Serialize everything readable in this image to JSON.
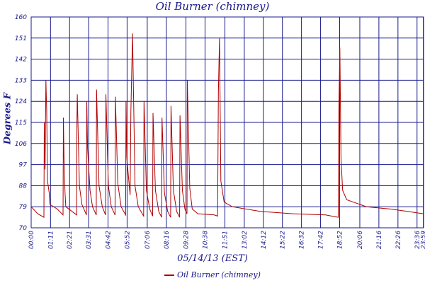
{
  "chart_data": {
    "type": "line",
    "title": "Oil Burner (chimney)",
    "xlabel": "05/14/13 (EST)",
    "ylabel": "Degrees F",
    "ylim": [
      70,
      160
    ],
    "yticks": [
      70,
      79,
      88,
      97,
      106,
      115,
      124,
      133,
      142,
      151,
      160
    ],
    "xrange_hours": [
      0,
      24
    ],
    "xticks": [
      {
        "label": "00:00",
        "h": 0
      },
      {
        "label": "01:11",
        "h": 1.1833
      },
      {
        "label": "02:21",
        "h": 2.35
      },
      {
        "label": "03:31",
        "h": 3.5167
      },
      {
        "label": "04:42",
        "h": 4.7
      },
      {
        "label": "05:52",
        "h": 5.8667
      },
      {
        "label": "07:06",
        "h": 7.1
      },
      {
        "label": "08:16",
        "h": 8.2667
      },
      {
        "label": "09:28",
        "h": 9.4667
      },
      {
        "label": "10:38",
        "h": 10.6333
      },
      {
        "label": "11:51",
        "h": 11.85
      },
      {
        "label": "13:02",
        "h": 13.0333
      },
      {
        "label": "14:12",
        "h": 14.2
      },
      {
        "label": "15:22",
        "h": 15.3667
      },
      {
        "label": "16:32",
        "h": 16.5333
      },
      {
        "label": "17:42",
        "h": 17.7
      },
      {
        "label": "18:52",
        "h": 18.8667
      },
      {
        "label": "20:06",
        "h": 20.1
      },
      {
        "label": "21:16",
        "h": 21.2667
      },
      {
        "label": "22:26",
        "h": 22.4333
      },
      {
        "label": "23:36",
        "h": 23.6
      },
      {
        "label": "23:59",
        "h": 23.9833
      }
    ],
    "grid": true,
    "legend": "bottom-center",
    "series": [
      {
        "name": "Oil Burner (chimney)",
        "color": "#b00000",
        "points": [
          [
            0.0,
            79
          ],
          [
            0.4,
            76
          ],
          [
            0.78,
            74.5
          ],
          [
            0.8,
            115
          ],
          [
            0.85,
            95
          ],
          [
            0.9,
            133
          ],
          [
            0.95,
            120
          ],
          [
            1.0,
            90
          ],
          [
            1.1,
            85
          ],
          [
            1.15,
            80
          ],
          [
            1.6,
            78
          ],
          [
            1.95,
            75.5
          ],
          [
            1.97,
            117
          ],
          [
            2.02,
            95
          ],
          [
            2.07,
            85
          ],
          [
            2.12,
            79
          ],
          [
            2.5,
            77
          ],
          [
            2.78,
            75.5
          ],
          [
            2.8,
            115
          ],
          [
            2.82,
            127
          ],
          [
            2.95,
            88
          ],
          [
            3.1,
            80
          ],
          [
            3.38,
            75.5
          ],
          [
            3.4,
            124
          ],
          [
            3.45,
            104
          ],
          [
            3.6,
            86
          ],
          [
            3.75,
            79
          ],
          [
            3.98,
            75.5
          ],
          [
            4.0,
            129
          ],
          [
            4.15,
            88
          ],
          [
            4.35,
            79
          ],
          [
            4.55,
            75.5
          ],
          [
            4.57,
            127
          ],
          [
            4.72,
            88
          ],
          [
            4.9,
            79
          ],
          [
            5.13,
            75.5
          ],
          [
            5.15,
            126
          ],
          [
            5.3,
            89
          ],
          [
            5.5,
            79
          ],
          [
            5.78,
            75.5
          ],
          [
            5.8,
            124
          ],
          [
            5.85,
            100
          ],
          [
            6.0,
            88
          ],
          [
            6.05,
            84
          ],
          [
            6.1,
            120
          ],
          [
            6.2,
            153
          ],
          [
            6.35,
            88
          ],
          [
            6.55,
            79
          ],
          [
            6.88,
            75
          ],
          [
            6.9,
            124
          ],
          [
            7.05,
            86
          ],
          [
            7.25,
            78
          ],
          [
            7.43,
            75
          ],
          [
            7.45,
            119
          ],
          [
            7.6,
            86
          ],
          [
            7.8,
            77
          ],
          [
            7.98,
            74.5
          ],
          [
            8.0,
            117
          ],
          [
            8.15,
            85
          ],
          [
            8.35,
            77
          ],
          [
            8.53,
            74.5
          ],
          [
            8.55,
            122
          ],
          [
            8.7,
            86
          ],
          [
            8.9,
            77
          ],
          [
            9.08,
            74.5
          ],
          [
            9.1,
            118
          ],
          [
            9.25,
            86
          ],
          [
            9.4,
            78
          ],
          [
            9.53,
            76
          ],
          [
            9.55,
            133
          ],
          [
            9.7,
            87
          ],
          [
            9.85,
            78
          ],
          [
            10.2,
            76
          ],
          [
            11.2,
            75.5
          ],
          [
            11.4,
            75
          ],
          [
            11.45,
            128
          ],
          [
            11.52,
            151
          ],
          [
            11.6,
            90
          ],
          [
            11.8,
            81
          ],
          [
            12.3,
            79
          ],
          [
            14.0,
            77
          ],
          [
            16.0,
            76
          ],
          [
            18.0,
            75.5
          ],
          [
            18.78,
            74.5
          ],
          [
            18.82,
            120
          ],
          [
            18.88,
            147
          ],
          [
            18.95,
            100
          ],
          [
            19.05,
            86
          ],
          [
            19.3,
            82
          ],
          [
            20.5,
            79
          ],
          [
            22.0,
            78
          ],
          [
            23.0,
            77
          ],
          [
            23.98,
            76
          ]
        ]
      }
    ]
  }
}
